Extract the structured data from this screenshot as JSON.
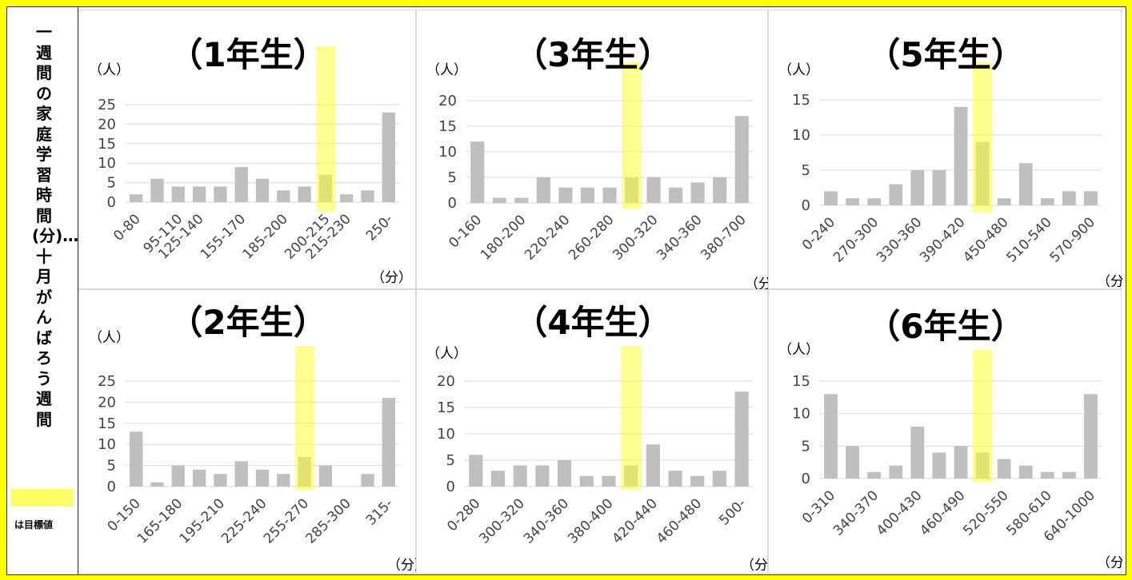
{
  "sidebar": {
    "title": "一週間の家庭学習時間(分)…十月がんばろう週間",
    "legend_label": "は目標値",
    "legend_color": "#ffff66"
  },
  "chart_data": [
    {
      "type": "bar",
      "title": "（1年生）",
      "ylabel": "（人）",
      "xlabel": "（分）",
      "yticks": [
        0,
        5,
        10,
        15,
        20,
        25
      ],
      "ylim": [
        0,
        25
      ],
      "tick_labels": [
        "0-80",
        "95-110",
        "125-140",
        "155-170",
        "185-200",
        "200-215",
        "215-230",
        "250-"
      ],
      "values": [
        2,
        6,
        4,
        4,
        4,
        9,
        6,
        3,
        4,
        7,
        2,
        3,
        23
      ],
      "highlight_index": 9
    },
    {
      "type": "bar",
      "title": "（2年生）",
      "ylabel": "（人）",
      "xlabel": "（分）",
      "yticks": [
        0,
        5,
        10,
        15,
        20,
        25
      ],
      "ylim": [
        0,
        25
      ],
      "tick_labels": [
        "0-150",
        "165-180",
        "195-210",
        "225-240",
        "255-270",
        "285-300",
        "315-"
      ],
      "values": [
        13,
        1,
        5,
        4,
        3,
        6,
        4,
        3,
        7,
        5,
        0,
        3,
        21
      ],
      "highlight_index": 8
    },
    {
      "type": "bar",
      "title": "（3年生）",
      "ylabel": "（人）",
      "xlabel": "（分）",
      "yticks": [
        0,
        5,
        10,
        15,
        20
      ],
      "ylim": [
        0,
        20
      ],
      "tick_labels": [
        "0-160",
        "180-200",
        "220-240",
        "260-280",
        "300-320",
        "340-360",
        "380-700"
      ],
      "values": [
        12,
        1,
        1,
        5,
        3,
        3,
        3,
        5,
        5,
        3,
        4,
        5,
        17
      ],
      "highlight_index": 7
    },
    {
      "type": "bar",
      "title": "（4年生）",
      "ylabel": "（人）",
      "xlabel": "（分）",
      "yticks": [
        0,
        5,
        10,
        15,
        20
      ],
      "ylim": [
        0,
        20
      ],
      "tick_labels": [
        "0-280",
        "300-320",
        "340-360",
        "380-400",
        "420-440",
        "460-480",
        "500-"
      ],
      "values": [
        6,
        3,
        4,
        4,
        5,
        2,
        2,
        4,
        8,
        3,
        2,
        3,
        18
      ],
      "highlight_index": 7
    },
    {
      "type": "bar",
      "title": "（5年生）",
      "ylabel": "（人）",
      "xlabel": "（分）",
      "yticks": [
        0,
        5,
        10,
        15
      ],
      "ylim": [
        0,
        15
      ],
      "tick_labels": [
        "0-240",
        "270-300",
        "330-360",
        "390-420",
        "450-480",
        "510-540",
        "570-900"
      ],
      "values": [
        2,
        1,
        1,
        3,
        5,
        5,
        14,
        9,
        1,
        6,
        1,
        2,
        2
      ],
      "highlight_index": 7
    },
    {
      "type": "bar",
      "title": "（6年生）",
      "ylabel": "（人）",
      "xlabel": "（分）",
      "yticks": [
        0,
        5,
        10,
        15
      ],
      "ylim": [
        0,
        15
      ],
      "tick_labels": [
        "0-310",
        "340-370",
        "400-430",
        "460-490",
        "520-550",
        "580-610",
        "640-1000"
      ],
      "values": [
        13,
        5,
        1,
        2,
        8,
        4,
        5,
        4,
        3,
        2,
        1,
        1,
        13
      ],
      "highlight_index": 7
    }
  ]
}
